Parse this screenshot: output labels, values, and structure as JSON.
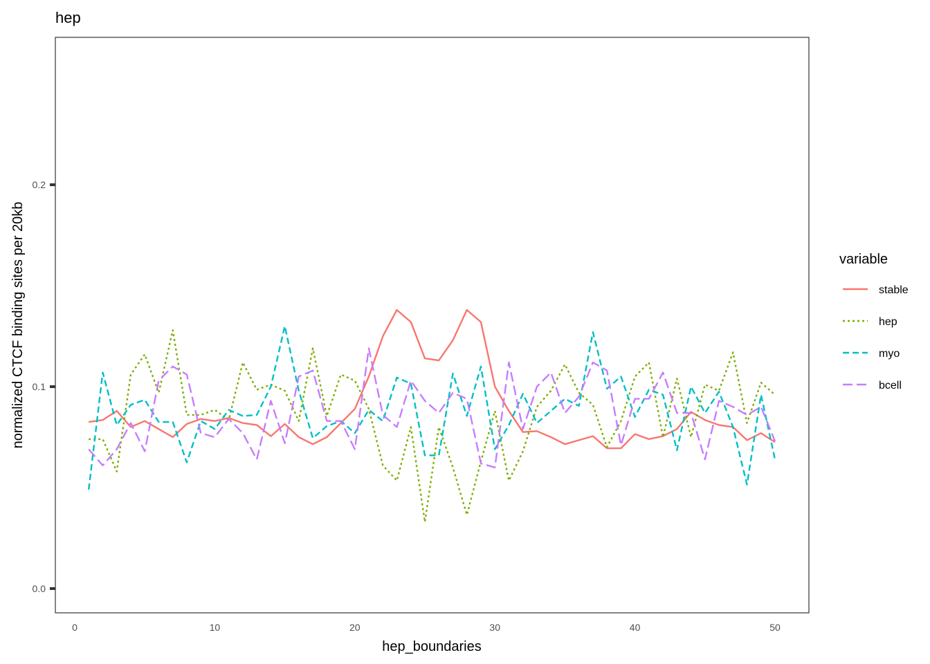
{
  "chart_data": {
    "type": "line",
    "title": "hep",
    "xlabel": "hep_boundaries",
    "ylabel": "normalized CTCF binding sites per 20kb",
    "xlim": [
      0,
      50
    ],
    "ylim": [
      -0.012,
      0.273
    ],
    "x_ticks": [
      "0",
      "10",
      "20",
      "30",
      "40",
      "50"
    ],
    "y_ticks": [
      "0.0",
      "0.1",
      "0.2"
    ],
    "grid": false,
    "legend": {
      "title": "variable",
      "position": "right"
    },
    "x": [
      1,
      2,
      3,
      4,
      5,
      6,
      7,
      8,
      9,
      10,
      11,
      12,
      13,
      14,
      15,
      16,
      17,
      18,
      19,
      20,
      21,
      22,
      23,
      24,
      25,
      26,
      27,
      28,
      29,
      30,
      31,
      32,
      33,
      34,
      35,
      36,
      37,
      38,
      39,
      40,
      41,
      42,
      43,
      44,
      45,
      46,
      47,
      48,
      49,
      50
    ],
    "series": [
      {
        "name": "stable",
        "color": "#F8766D",
        "dash": "solid",
        "values": [
          0.0825,
          0.0835,
          0.088,
          0.08,
          0.083,
          0.079,
          0.075,
          0.0815,
          0.084,
          0.083,
          0.0845,
          0.082,
          0.081,
          0.0755,
          0.0815,
          0.075,
          0.0715,
          0.075,
          0.082,
          0.089,
          0.105,
          0.125,
          0.138,
          0.132,
          0.114,
          0.113,
          0.123,
          0.138,
          0.132,
          0.1,
          0.088,
          0.0775,
          0.078,
          0.075,
          0.0715,
          0.0735,
          0.0755,
          0.0695,
          0.0695,
          0.0765,
          0.074,
          0.0755,
          0.079,
          0.0875,
          0.0835,
          0.081,
          0.08,
          0.0735,
          0.077,
          0.0725
        ]
      },
      {
        "name": "hep",
        "color": "#7CAE00",
        "dash": "dotted",
        "values": [
          0.074,
          0.074,
          0.058,
          0.106,
          0.116,
          0.097,
          0.128,
          0.086,
          0.086,
          0.0885,
          0.0835,
          0.112,
          0.0985,
          0.101,
          0.098,
          0.083,
          0.119,
          0.0855,
          0.106,
          0.103,
          0.089,
          0.061,
          0.0535,
          0.08,
          0.033,
          0.08,
          0.06,
          0.0365,
          0.063,
          0.088,
          0.0535,
          0.068,
          0.09,
          0.098,
          0.111,
          0.097,
          0.091,
          0.07,
          0.083,
          0.105,
          0.112,
          0.075,
          0.104,
          0.075,
          0.101,
          0.098,
          0.117,
          0.082,
          0.102,
          0.096
        ]
      },
      {
        "name": "myo",
        "color": "#00BFC4",
        "dash": "dashed",
        "values": [
          0.049,
          0.107,
          0.081,
          0.091,
          0.0935,
          0.0825,
          0.0825,
          0.0625,
          0.083,
          0.079,
          0.0885,
          0.0855,
          0.086,
          0.1,
          0.13,
          0.098,
          0.0745,
          0.0805,
          0.083,
          0.077,
          0.0885,
          0.083,
          0.1045,
          0.1015,
          0.066,
          0.066,
          0.1065,
          0.0855,
          0.11,
          0.069,
          0.081,
          0.0965,
          0.082,
          0.088,
          0.094,
          0.0905,
          0.127,
          0.099,
          0.105,
          0.085,
          0.0985,
          0.096,
          0.0685,
          0.1,
          0.087,
          0.0975,
          0.08,
          0.0515,
          0.096,
          0.064
        ]
      },
      {
        "name": "bcell",
        "color": "#C77CFF",
        "dash": "longdash",
        "values": [
          0.069,
          0.061,
          0.069,
          0.082,
          0.068,
          0.103,
          0.11,
          0.106,
          0.077,
          0.075,
          0.084,
          0.077,
          0.064,
          0.093,
          0.072,
          0.105,
          0.108,
          0.083,
          0.083,
          0.069,
          0.119,
          0.086,
          0.08,
          0.103,
          0.093,
          0.087,
          0.097,
          0.094,
          0.062,
          0.06,
          0.112,
          0.079,
          0.1,
          0.107,
          0.087,
          0.095,
          0.112,
          0.108,
          0.071,
          0.094,
          0.094,
          0.107,
          0.087,
          0.087,
          0.064,
          0.093,
          0.09,
          0.086,
          0.09,
          0.073
        ]
      }
    ]
  }
}
